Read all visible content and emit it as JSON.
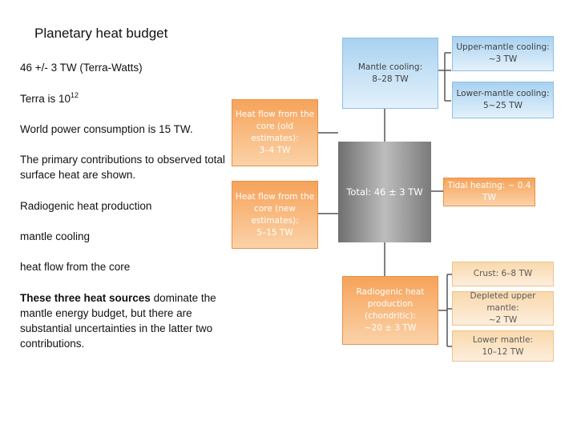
{
  "title": "Planetary heat budget",
  "text": {
    "line1": "46 +/- 3 TW (Terra-Watts)",
    "terra_prefix": "Terra is 10",
    "terra_exp": "12",
    "power": "World power consumption is 15 TW.",
    "primary": "The primary contributions to observed total surface heat are shown.",
    "radiogenic": "Radiogenic heat production",
    "mantle": "mantle cooling",
    "core": "heat flow from the core",
    "summary_bold": "These three heat sources",
    "summary_rest": " dominate the mantle energy budget, but there are substantial uncertainties in the latter two contributions."
  },
  "diagram": {
    "total": "Total: 46 ± 3 TW",
    "mantle_cooling": "Mantle cooling:\n8–28 TW",
    "upper_mantle_cooling": "Upper-mantle cooling:\n~3 TW",
    "lower_mantle_cooling": "Lower-mantle cooling:\n5~25 TW",
    "core_old": "Heat flow from the\ncore (old estimates):\n3–4 TW",
    "core_new": "Heat flow from the\ncore (new estimates):\n5–15 TW",
    "tidal": "Tidal heating: ~ 0.4 TW",
    "radiogenic": "Radiogenic heat\nproduction\n(chondritic):\n~20 ± 3 TW",
    "crust": "Crust: 6–8 TW",
    "depleted": "Depleted upper mantle:\n~2 TW",
    "lower_mantle": "Lower mantle:\n10–12 TW"
  },
  "colors": {
    "blue": "#a9d2f0",
    "orange": "#f6a35a",
    "cream": "#f9d9ac",
    "gray": "#9a9a9a",
    "connector": "#555555"
  }
}
